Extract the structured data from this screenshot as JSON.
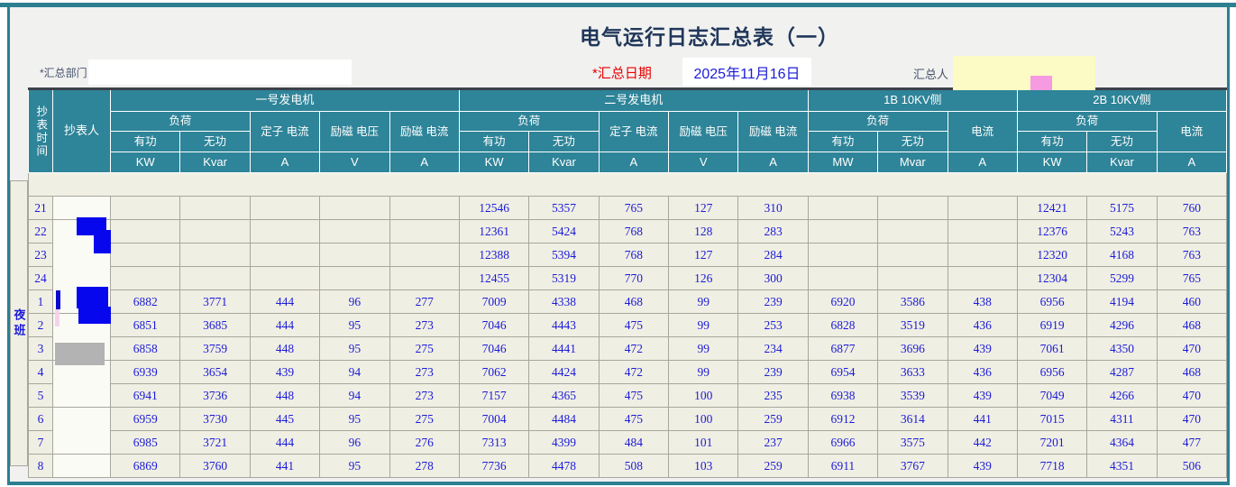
{
  "title": "电气运行日志汇总表（一）",
  "form": {
    "dept_label": "*汇总部门",
    "dept_value": "",
    "dept_placeholder": "",
    "date_label": "*汇总日期",
    "date_value": "2025年11月16日",
    "summarizer_label": "汇总人"
  },
  "colors": {
    "accent_teal": "#2E8498",
    "border_teal": "#2b7f91",
    "data_blue": "#1b1bd9",
    "required_red": "#e80000",
    "title_navy": "#21375a",
    "cell_ivory": "#f0efe3",
    "redaction_blue": "#0707ee",
    "redaction_yellow": "#fcfac5",
    "redaction_pink": "#f69ae1",
    "redaction_gray": "#b3b3b3"
  },
  "table": {
    "time_header": "抄表时间",
    "reader_header": "抄表人",
    "shift_label": "夜班",
    "groups": [
      {
        "label": "一号发电机"
      },
      {
        "label": "二号发电机"
      },
      {
        "label": "1B 10KV侧"
      },
      {
        "label": "2B 10KV侧"
      }
    ],
    "cols": {
      "load": "负荷",
      "active": "有功",
      "reactive": "无功",
      "stator": "定子 电流",
      "exc_v": "励磁 电压",
      "exc_i": "励磁 电流",
      "current": "电流"
    },
    "units": [
      "KW",
      "Kvar",
      "A",
      "V",
      "A",
      "KW",
      "Kvar",
      "A",
      "V",
      "A",
      "MW",
      "Mvar",
      "A",
      "KW",
      "Kvar",
      "A"
    ],
    "rows": [
      {
        "hour": "21",
        "values": [
          "",
          "",
          "",
          "",
          "",
          "12546",
          "5357",
          "765",
          "127",
          "310",
          "",
          "",
          "",
          "12421",
          "5175",
          "760"
        ]
      },
      {
        "hour": "22",
        "values": [
          "",
          "",
          "",
          "",
          "",
          "12361",
          "5424",
          "768",
          "128",
          "283",
          "",
          "",
          "",
          "12376",
          "5243",
          "763"
        ]
      },
      {
        "hour": "23",
        "values": [
          "",
          "",
          "",
          "",
          "",
          "12388",
          "5394",
          "768",
          "127",
          "284",
          "",
          "",
          "",
          "12320",
          "4168",
          "763"
        ]
      },
      {
        "hour": "24",
        "values": [
          "",
          "",
          "",
          "",
          "",
          "12455",
          "5319",
          "770",
          "126",
          "300",
          "",
          "",
          "",
          "12304",
          "5299",
          "765"
        ]
      },
      {
        "hour": "1",
        "values": [
          "6882",
          "3771",
          "444",
          "96",
          "277",
          "7009",
          "4338",
          "468",
          "99",
          "239",
          "6920",
          "3586",
          "438",
          "6956",
          "4194",
          "460"
        ]
      },
      {
        "hour": "2",
        "values": [
          "6851",
          "3685",
          "444",
          "95",
          "273",
          "7046",
          "4443",
          "475",
          "99",
          "253",
          "6828",
          "3519",
          "436",
          "6919",
          "4296",
          "468"
        ]
      },
      {
        "hour": "3",
        "values": [
          "6858",
          "3759",
          "448",
          "95",
          "275",
          "7046",
          "4441",
          "472",
          "99",
          "234",
          "6877",
          "3696",
          "439",
          "7061",
          "4350",
          "470"
        ]
      },
      {
        "hour": "4",
        "values": [
          "6939",
          "3654",
          "439",
          "94",
          "273",
          "7062",
          "4424",
          "472",
          "99",
          "239",
          "6954",
          "3633",
          "436",
          "6956",
          "4287",
          "468"
        ]
      },
      {
        "hour": "5",
        "values": [
          "6941",
          "3736",
          "448",
          "94",
          "273",
          "7157",
          "4365",
          "475",
          "100",
          "235",
          "6938",
          "3539",
          "439",
          "7049",
          "4266",
          "470"
        ]
      },
      {
        "hour": "6",
        "values": [
          "6959",
          "3730",
          "445",
          "95",
          "275",
          "7004",
          "4484",
          "475",
          "100",
          "259",
          "6912",
          "3614",
          "441",
          "7015",
          "4311",
          "470"
        ]
      },
      {
        "hour": "7",
        "values": [
          "6985",
          "3721",
          "444",
          "96",
          "276",
          "7313",
          "4399",
          "484",
          "101",
          "237",
          "6966",
          "3575",
          "442",
          "7201",
          "4364",
          "477"
        ]
      },
      {
        "hour": "8",
        "values": [
          "6869",
          "3760",
          "441",
          "95",
          "278",
          "7736",
          "4478",
          "508",
          "103",
          "259",
          "6911",
          "3767",
          "439",
          "7718",
          "4351",
          "506"
        ]
      }
    ]
  }
}
